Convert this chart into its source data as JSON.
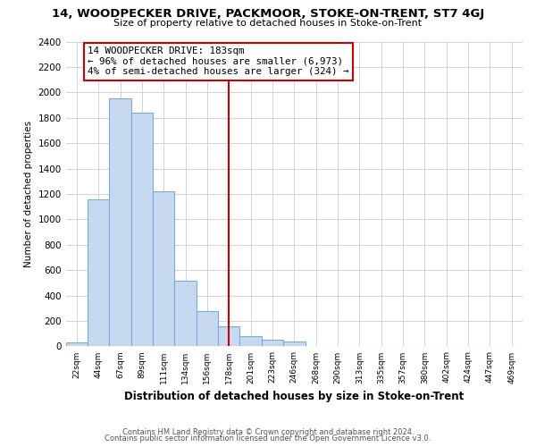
{
  "title": "14, WOODPECKER DRIVE, PACKMOOR, STOKE-ON-TRENT, ST7 4GJ",
  "subtitle": "Size of property relative to detached houses in Stoke-on-Trent",
  "xlabel": "Distribution of detached houses by size in Stoke-on-Trent",
  "ylabel": "Number of detached properties",
  "bin_labels": [
    "22sqm",
    "44sqm",
    "67sqm",
    "89sqm",
    "111sqm",
    "134sqm",
    "156sqm",
    "178sqm",
    "201sqm",
    "223sqm",
    "246sqm",
    "268sqm",
    "290sqm",
    "313sqm",
    "335sqm",
    "357sqm",
    "380sqm",
    "402sqm",
    "424sqm",
    "447sqm",
    "469sqm"
  ],
  "bar_heights": [
    30,
    1160,
    1950,
    1840,
    1220,
    520,
    275,
    155,
    80,
    50,
    40,
    5,
    5,
    0,
    0,
    0,
    0,
    0,
    0,
    0,
    0
  ],
  "bar_color": "#c6d9f0",
  "bar_edge_color": "#7aadd4",
  "vline_x": 7,
  "vline_color": "#cc0000",
  "annotation_title": "14 WOODPECKER DRIVE: 183sqm",
  "annotation_line1": "← 96% of detached houses are smaller (6,973)",
  "annotation_line2": "4% of semi-detached houses are larger (324) →",
  "annotation_box_edge": "#cc0000",
  "ylim": [
    0,
    2400
  ],
  "yticks": [
    0,
    200,
    400,
    600,
    800,
    1000,
    1200,
    1400,
    1600,
    1800,
    2000,
    2200,
    2400
  ],
  "footer1": "Contains HM Land Registry data © Crown copyright and database right 2024.",
  "footer2": "Contains public sector information licensed under the Open Government Licence v3.0.",
  "background_color": "#ffffff",
  "grid_color": "#cccccc"
}
